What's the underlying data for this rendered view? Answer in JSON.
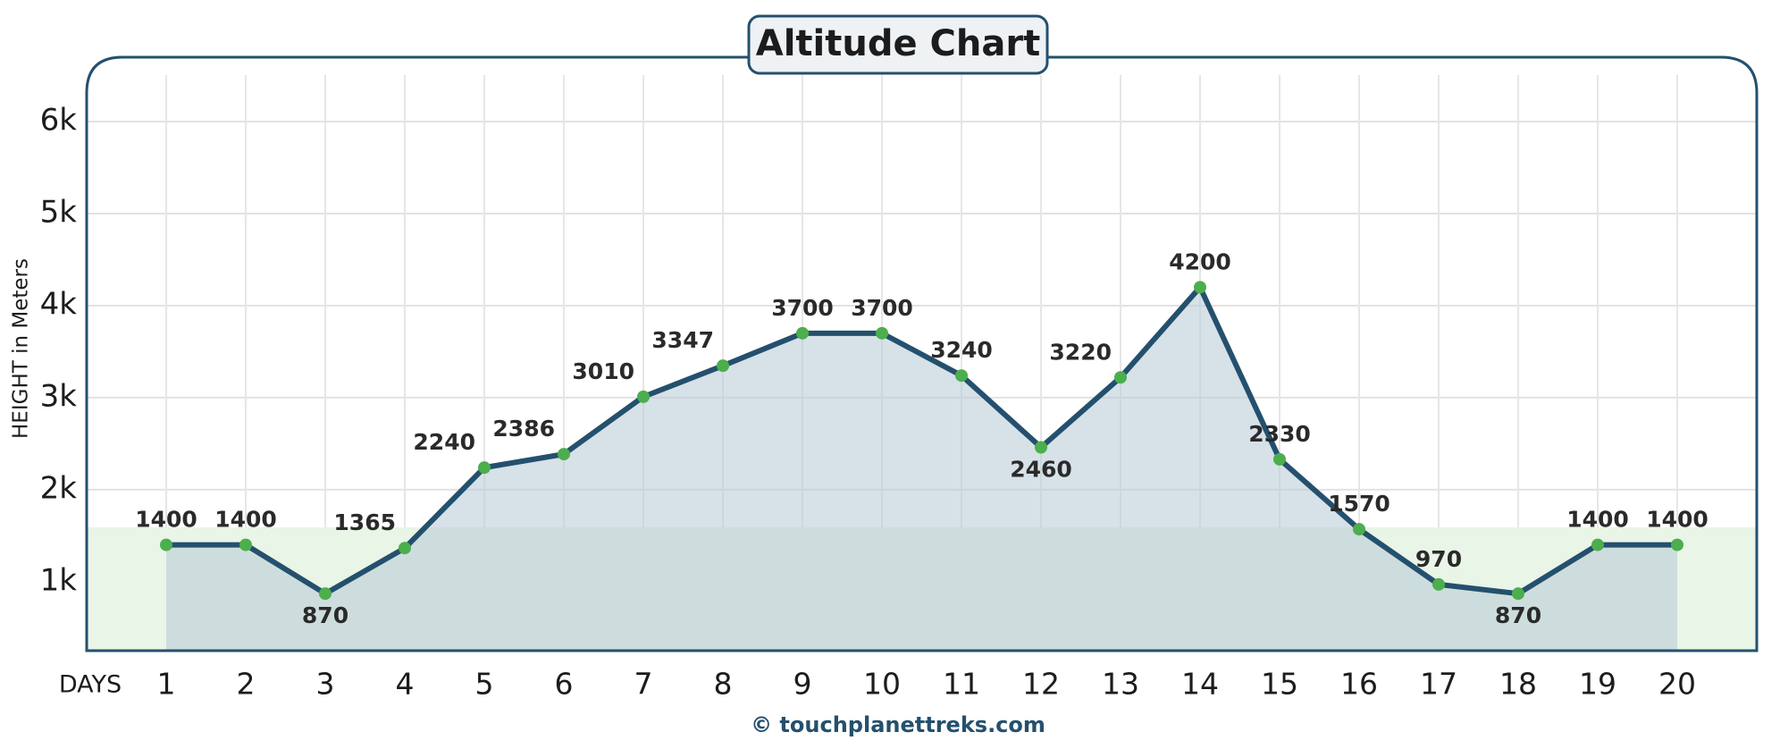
{
  "chart_data": {
    "type": "line",
    "title": "Altitude Chart",
    "y_label": "HEIGHT in Meters",
    "x_label": "DAYS",
    "footer": "© touchplanettreks.com",
    "x": [
      1,
      2,
      3,
      4,
      5,
      6,
      7,
      8,
      9,
      10,
      11,
      12,
      13,
      14,
      15,
      16,
      17,
      18,
      19,
      20
    ],
    "series": [
      {
        "name": "Altitude",
        "color": "#24506e",
        "marker_color": "#4cae4c",
        "values": [
          1400,
          1400,
          870,
          1365,
          2240,
          2386,
          3010,
          3347,
          3700,
          3700,
          3240,
          2460,
          3220,
          4200,
          2330,
          1570,
          970,
          870,
          1400,
          1400
        ]
      }
    ],
    "xlim": [
      0,
      21
    ],
    "xticks": [
      1,
      2,
      3,
      4,
      5,
      6,
      7,
      8,
      9,
      10,
      11,
      12,
      13,
      14,
      15,
      16,
      17,
      18,
      19,
      20
    ],
    "ylim": [
      250,
      6700
    ],
    "yticks": [
      {
        "value": 1000,
        "label": "1k"
      },
      {
        "value": 2000,
        "label": "2k"
      },
      {
        "value": 3000,
        "label": "3k"
      },
      {
        "value": 4000,
        "label": "4k"
      },
      {
        "value": 5000,
        "label": "5k"
      },
      {
        "value": 6000,
        "label": "6k"
      }
    ],
    "grid": true
  }
}
